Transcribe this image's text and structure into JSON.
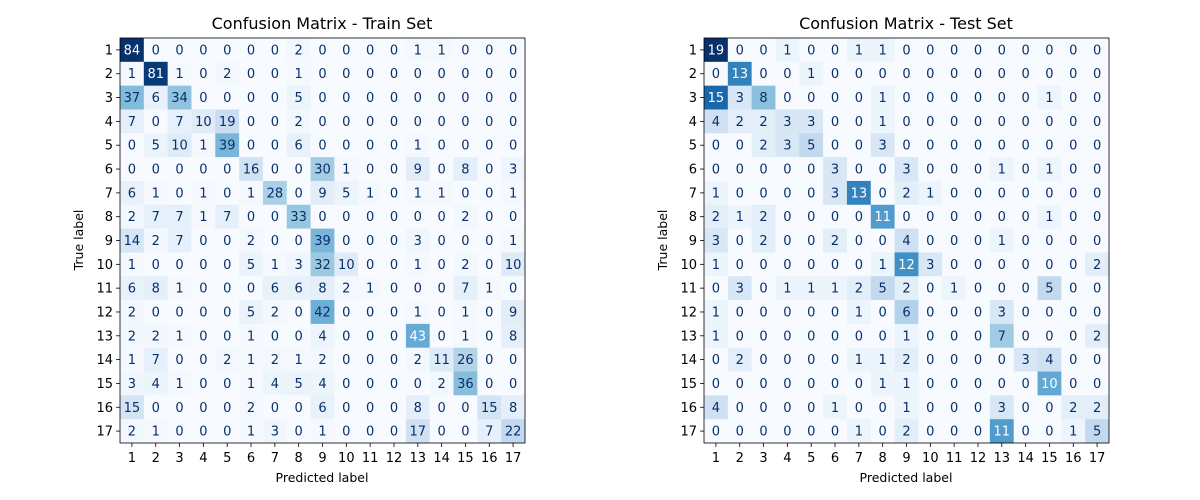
{
  "chart_data": [
    {
      "type": "heatmap",
      "title": "Confusion Matrix - Train Set",
      "xlabel": "Predicted label",
      "ylabel": "True label",
      "x_tick_labels": [
        "1",
        "2",
        "3",
        "4",
        "5",
        "6",
        "7",
        "8",
        "9",
        "10",
        "11",
        "12",
        "13",
        "14",
        "15",
        "16",
        "17"
      ],
      "y_tick_labels": [
        "1",
        "2",
        "3",
        "4",
        "5",
        "6",
        "7",
        "8",
        "9",
        "10",
        "11",
        "12",
        "13",
        "14",
        "15",
        "16",
        "17"
      ],
      "colormap": "Blues",
      "matrix": [
        [
          84,
          0,
          0,
          0,
          0,
          0,
          0,
          2,
          0,
          0,
          0,
          0,
          1,
          1,
          0,
          0,
          0
        ],
        [
          1,
          81,
          1,
          0,
          2,
          0,
          0,
          1,
          0,
          0,
          0,
          0,
          0,
          0,
          0,
          0,
          0
        ],
        [
          37,
          6,
          34,
          0,
          0,
          0,
          0,
          5,
          0,
          0,
          0,
          0,
          0,
          0,
          0,
          0,
          0
        ],
        [
          7,
          0,
          7,
          10,
          19,
          0,
          0,
          2,
          0,
          0,
          0,
          0,
          0,
          0,
          0,
          0,
          0
        ],
        [
          0,
          5,
          10,
          1,
          39,
          0,
          0,
          6,
          0,
          0,
          0,
          0,
          1,
          0,
          0,
          0,
          0
        ],
        [
          0,
          0,
          0,
          0,
          0,
          16,
          0,
          0,
          30,
          1,
          0,
          0,
          9,
          0,
          8,
          0,
          3
        ],
        [
          6,
          1,
          0,
          1,
          0,
          1,
          28,
          0,
          9,
          5,
          1,
          0,
          1,
          1,
          0,
          0,
          1
        ],
        [
          2,
          7,
          7,
          1,
          7,
          0,
          0,
          33,
          0,
          0,
          0,
          0,
          0,
          0,
          2,
          0,
          0
        ],
        [
          14,
          2,
          7,
          0,
          0,
          2,
          0,
          0,
          39,
          0,
          0,
          0,
          3,
          0,
          0,
          0,
          1
        ],
        [
          1,
          0,
          0,
          0,
          0,
          5,
          1,
          3,
          32,
          10,
          0,
          0,
          1,
          0,
          2,
          0,
          10
        ],
        [
          6,
          8,
          1,
          0,
          0,
          0,
          6,
          6,
          8,
          2,
          1,
          0,
          0,
          0,
          7,
          1,
          0
        ],
        [
          2,
          0,
          0,
          0,
          0,
          5,
          2,
          0,
          42,
          0,
          0,
          0,
          1,
          0,
          1,
          0,
          9
        ],
        [
          2,
          2,
          1,
          0,
          0,
          1,
          0,
          0,
          4,
          0,
          0,
          0,
          43,
          0,
          1,
          0,
          8
        ],
        [
          1,
          7,
          0,
          0,
          2,
          1,
          2,
          1,
          2,
          0,
          0,
          0,
          2,
          11,
          26,
          0,
          0
        ],
        [
          3,
          4,
          1,
          0,
          0,
          1,
          4,
          5,
          4,
          0,
          0,
          0,
          0,
          2,
          36,
          0,
          0
        ],
        [
          15,
          0,
          0,
          0,
          0,
          2,
          0,
          0,
          6,
          0,
          0,
          0,
          8,
          0,
          0,
          15,
          8
        ],
        [
          2,
          1,
          0,
          0,
          0,
          1,
          3,
          0,
          1,
          0,
          0,
          0,
          17,
          0,
          0,
          7,
          22
        ]
      ]
    },
    {
      "type": "heatmap",
      "title": "Confusion Matrix - Test Set",
      "xlabel": "Predicted label",
      "ylabel": "True label",
      "x_tick_labels": [
        "1",
        "2",
        "3",
        "4",
        "5",
        "6",
        "7",
        "8",
        "9",
        "10",
        "11",
        "12",
        "13",
        "14",
        "15",
        "16",
        "17"
      ],
      "y_tick_labels": [
        "1",
        "2",
        "3",
        "4",
        "5",
        "6",
        "7",
        "8",
        "9",
        "10",
        "11",
        "12",
        "13",
        "14",
        "15",
        "16",
        "17"
      ],
      "colormap": "Blues",
      "matrix": [
        [
          19,
          0,
          0,
          1,
          0,
          0,
          1,
          1,
          0,
          0,
          0,
          0,
          0,
          0,
          0,
          0,
          0
        ],
        [
          0,
          13,
          0,
          0,
          1,
          0,
          0,
          0,
          0,
          0,
          0,
          0,
          0,
          0,
          0,
          0,
          0
        ],
        [
          15,
          3,
          8,
          0,
          0,
          0,
          0,
          1,
          0,
          0,
          0,
          0,
          0,
          0,
          1,
          0,
          0
        ],
        [
          4,
          2,
          2,
          3,
          3,
          0,
          0,
          1,
          0,
          0,
          0,
          0,
          0,
          0,
          0,
          0,
          0
        ],
        [
          0,
          0,
          2,
          3,
          5,
          0,
          0,
          3,
          0,
          0,
          0,
          0,
          0,
          0,
          0,
          0,
          0
        ],
        [
          0,
          0,
          0,
          0,
          0,
          3,
          0,
          0,
          3,
          0,
          0,
          0,
          1,
          0,
          1,
          0,
          0
        ],
        [
          1,
          0,
          0,
          0,
          0,
          3,
          13,
          0,
          2,
          1,
          0,
          0,
          0,
          0,
          0,
          0,
          0
        ],
        [
          2,
          1,
          2,
          0,
          0,
          0,
          0,
          11,
          0,
          0,
          0,
          0,
          0,
          0,
          1,
          0,
          0
        ],
        [
          3,
          0,
          2,
          0,
          0,
          2,
          0,
          0,
          4,
          0,
          0,
          0,
          1,
          0,
          0,
          0,
          0
        ],
        [
          1,
          0,
          0,
          0,
          0,
          0,
          0,
          1,
          12,
          3,
          0,
          0,
          0,
          0,
          0,
          0,
          2
        ],
        [
          0,
          3,
          0,
          1,
          1,
          1,
          2,
          5,
          2,
          0,
          1,
          0,
          0,
          0,
          5,
          0,
          0
        ],
        [
          1,
          0,
          0,
          0,
          0,
          0,
          1,
          0,
          6,
          0,
          0,
          0,
          3,
          0,
          0,
          0,
          0
        ],
        [
          1,
          0,
          0,
          0,
          0,
          0,
          0,
          0,
          1,
          0,
          0,
          0,
          7,
          0,
          0,
          0,
          2
        ],
        [
          0,
          2,
          0,
          0,
          0,
          0,
          1,
          1,
          2,
          0,
          0,
          0,
          0,
          3,
          4,
          0,
          0
        ],
        [
          0,
          0,
          0,
          0,
          0,
          0,
          0,
          1,
          1,
          0,
          0,
          0,
          0,
          0,
          10,
          0,
          0
        ],
        [
          4,
          0,
          0,
          0,
          0,
          1,
          0,
          0,
          1,
          0,
          0,
          0,
          3,
          0,
          0,
          2,
          2
        ],
        [
          0,
          0,
          0,
          0,
          0,
          0,
          1,
          0,
          2,
          0,
          0,
          0,
          11,
          0,
          0,
          1,
          5
        ]
      ]
    }
  ]
}
